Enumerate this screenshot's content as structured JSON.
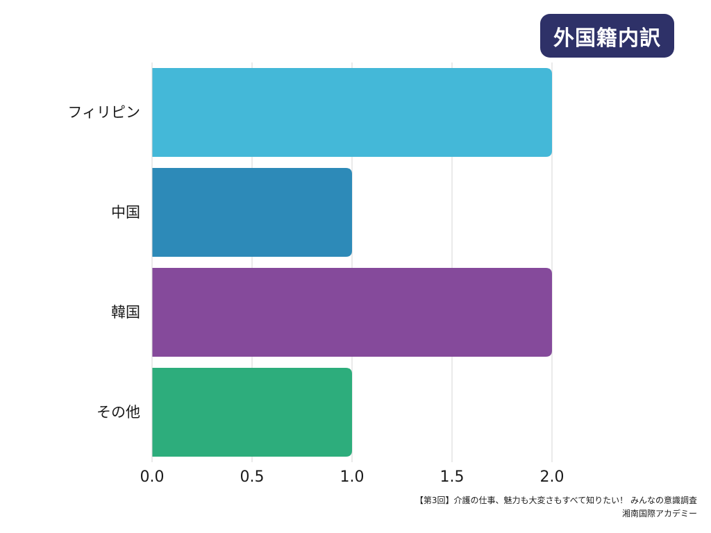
{
  "title": "外国籍内訳",
  "footer": {
    "line1": "【第3回】介護の仕事、魅力も大変さもすべて知りたい！ みんなの意識調査",
    "line2": "湘南国際アカデミー"
  },
  "chart_data": {
    "type": "bar",
    "orientation": "horizontal",
    "title": "外国籍内訳",
    "categories": [
      "フィリピン",
      "中国",
      "韓国",
      "その他"
    ],
    "values": [
      2,
      1,
      2,
      1
    ],
    "colors": [
      "#44b8d8",
      "#2d8ab8",
      "#854a9b",
      "#2dad7c"
    ],
    "xlim": [
      0,
      2
    ],
    "xticks": [
      "0.0",
      "0.5",
      "1.0",
      "1.5",
      "2.0"
    ],
    "xlabel": "",
    "ylabel": "",
    "grid": "vertical",
    "legend": "none"
  }
}
